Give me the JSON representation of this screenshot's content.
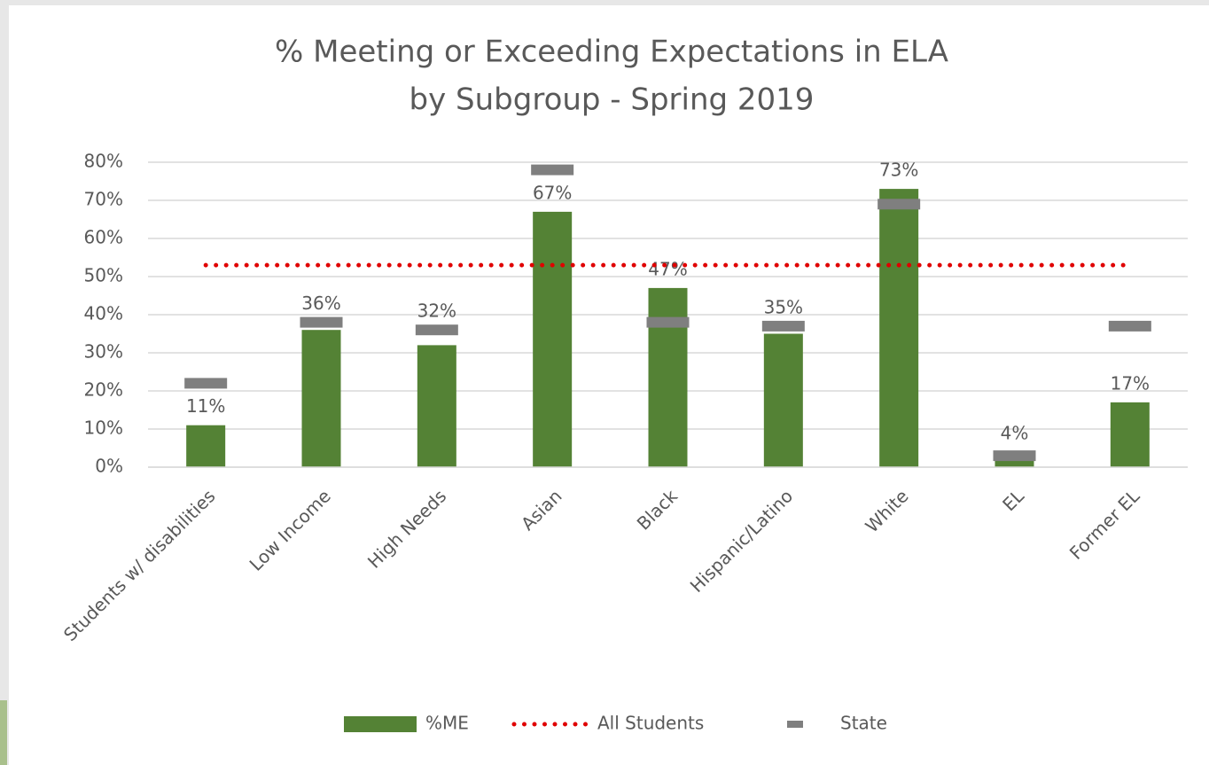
{
  "chart_data": {
    "type": "bar",
    "title": [
      "% Meeting or Exceeding Expectations in ELA",
      "by Subgroup - Spring 2019"
    ],
    "categories": [
      "Students w/ disabilities",
      "Low Income",
      "High Needs",
      "Asian",
      "Black",
      "Hispanic/Latino",
      "White",
      "EL",
      "Former EL"
    ],
    "series": [
      {
        "name": "%ME",
        "kind": "bar",
        "color": "#548235",
        "values": [
          11,
          36,
          32,
          67,
          47,
          35,
          73,
          4,
          17
        ],
        "value_labels": [
          "11%",
          "36%",
          "32%",
          "67%",
          "47%",
          "35%",
          "73%",
          "4%",
          "17%"
        ]
      },
      {
        "name": "All Students",
        "kind": "line",
        "color": "#e00000",
        "values": [
          53,
          53,
          53,
          53,
          53,
          53,
          53,
          53,
          53
        ]
      },
      {
        "name": "State",
        "kind": "marker",
        "color": "#7f7f7f",
        "values": [
          22,
          38,
          36,
          78,
          38,
          37,
          69,
          3,
          37
        ]
      }
    ],
    "ylim": [
      0,
      80
    ],
    "yticks": [
      {
        "value": 0,
        "label": "0%"
      },
      {
        "value": 10,
        "label": "10%"
      },
      {
        "value": 20,
        "label": "20%"
      },
      {
        "value": 30,
        "label": "30%"
      },
      {
        "value": 40,
        "label": "40%"
      },
      {
        "value": 50,
        "label": "50%"
      },
      {
        "value": 60,
        "label": "60%"
      },
      {
        "value": 70,
        "label": "70%"
      },
      {
        "value": 80,
        "label": "80%"
      }
    ],
    "grid": true,
    "legend": "bottom"
  }
}
